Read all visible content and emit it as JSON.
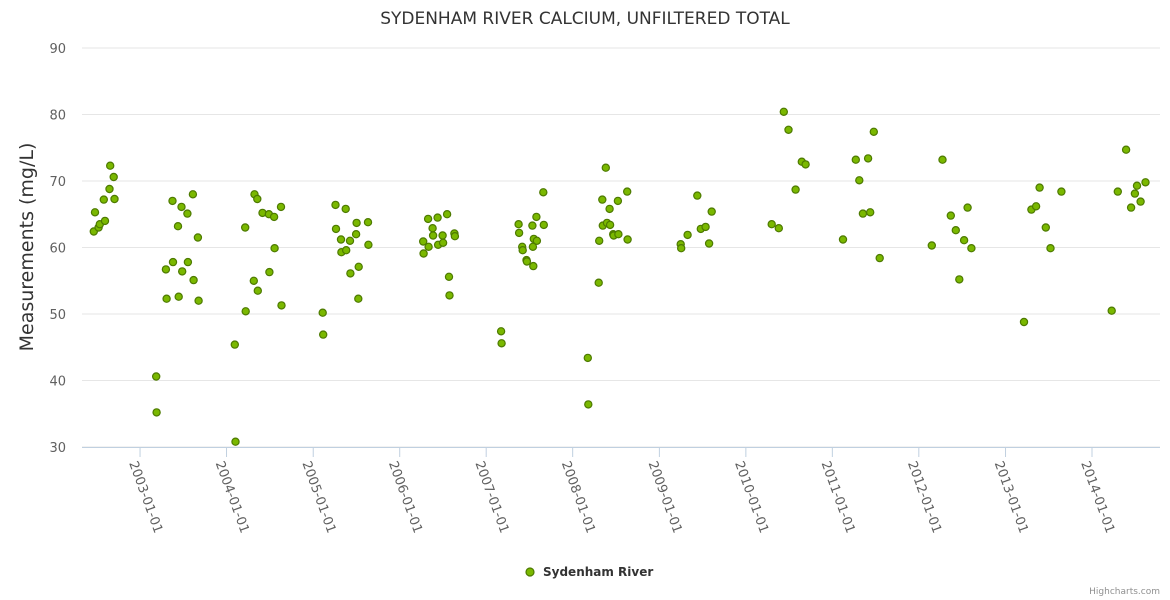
{
  "chart_data": {
    "type": "scatter",
    "title": "SYDENHAM RIVER CALCIUM, UNFILTERED TOTAL",
    "xlabel": "",
    "ylabel": "Measurements (mg/L)",
    "ylim": [
      30,
      90
    ],
    "yticks": [
      "30",
      "40",
      "50",
      "60",
      "70",
      "80",
      "90"
    ],
    "xlim": [
      "2002-05-01",
      "2014-10-15"
    ],
    "xticks": [
      "2003-01-01",
      "2004-01-01",
      "2005-01-01",
      "2006-01-01",
      "2007-01-01",
      "2008-01-01",
      "2009-01-01",
      "2010-01-01",
      "2011-01-01",
      "2012-01-01",
      "2013-01-01",
      "2014-01-01"
    ],
    "grid": true,
    "legend_position": "bottom-center",
    "color": "#7ab800",
    "credits": "Highcharts.com",
    "series": [
      {
        "name": "Sydenham River",
        "points": [
          [
            "2002-06-20",
            62.4
          ],
          [
            "2002-06-25",
            65.3
          ],
          [
            "2002-07-10",
            63.0
          ],
          [
            "2002-07-15",
            63.5
          ],
          [
            "2002-08-01",
            67.2
          ],
          [
            "2002-08-06",
            64.0
          ],
          [
            "2002-08-25",
            68.8
          ],
          [
            "2002-08-28",
            72.3
          ],
          [
            "2002-09-12",
            70.6
          ],
          [
            "2002-09-15",
            67.3
          ],
          [
            "2003-03-10",
            40.6
          ],
          [
            "2003-03-12",
            35.2
          ],
          [
            "2003-04-20",
            56.7
          ],
          [
            "2003-04-23",
            52.3
          ],
          [
            "2003-05-18",
            67.0
          ],
          [
            "2003-05-20",
            57.8
          ],
          [
            "2003-06-10",
            63.2
          ],
          [
            "2003-06-13",
            52.6
          ],
          [
            "2003-06-25",
            66.1
          ],
          [
            "2003-06-28",
            56.4
          ],
          [
            "2003-07-20",
            65.1
          ],
          [
            "2003-07-22",
            57.8
          ],
          [
            "2003-08-12",
            68.0
          ],
          [
            "2003-08-15",
            55.1
          ],
          [
            "2003-09-02",
            61.5
          ],
          [
            "2003-09-05",
            52.0
          ],
          [
            "2004-02-05",
            45.4
          ],
          [
            "2004-02-08",
            30.8
          ],
          [
            "2004-03-20",
            63.0
          ],
          [
            "2004-03-22",
            50.4
          ],
          [
            "2004-04-25",
            55.0
          ],
          [
            "2004-04-28",
            68.0
          ],
          [
            "2004-05-10",
            67.3
          ],
          [
            "2004-05-12",
            53.5
          ],
          [
            "2004-06-01",
            65.2
          ],
          [
            "2004-06-28",
            65.0
          ],
          [
            "2004-06-30",
            56.3
          ],
          [
            "2004-07-20",
            64.6
          ],
          [
            "2004-07-22",
            59.9
          ],
          [
            "2004-08-18",
            66.1
          ],
          [
            "2004-08-20",
            51.3
          ],
          [
            "2005-02-10",
            50.2
          ],
          [
            "2005-02-12",
            46.9
          ],
          [
            "2005-04-05",
            66.4
          ],
          [
            "2005-04-07",
            62.8
          ],
          [
            "2005-04-28",
            61.2
          ],
          [
            "2005-04-30",
            59.3
          ],
          [
            "2005-05-18",
            65.8
          ],
          [
            "2005-05-20",
            59.6
          ],
          [
            "2005-06-05",
            61.0
          ],
          [
            "2005-06-07",
            56.1
          ],
          [
            "2005-07-01",
            62.0
          ],
          [
            "2005-07-03",
            63.7
          ],
          [
            "2005-07-10",
            52.3
          ],
          [
            "2005-07-12",
            57.1
          ],
          [
            "2005-08-20",
            63.8
          ],
          [
            "2005-08-22",
            60.4
          ],
          [
            "2006-04-10",
            60.9
          ],
          [
            "2006-04-12",
            59.1
          ],
          [
            "2006-05-01",
            64.3
          ],
          [
            "2006-05-03",
            60.1
          ],
          [
            "2006-05-20",
            62.9
          ],
          [
            "2006-05-22",
            61.8
          ],
          [
            "2006-06-10",
            64.5
          ],
          [
            "2006-06-12",
            60.4
          ],
          [
            "2006-07-01",
            61.8
          ],
          [
            "2006-07-03",
            60.7
          ],
          [
            "2006-07-20",
            65.0
          ],
          [
            "2006-07-28",
            55.6
          ],
          [
            "2006-07-30",
            52.8
          ],
          [
            "2006-08-20",
            62.1
          ],
          [
            "2006-08-22",
            61.7
          ],
          [
            "2007-03-05",
            47.4
          ],
          [
            "2007-03-07",
            45.6
          ],
          [
            "2007-05-18",
            63.5
          ],
          [
            "2007-05-20",
            62.2
          ],
          [
            "2007-06-02",
            60.1
          ],
          [
            "2007-06-04",
            59.6
          ],
          [
            "2007-06-20",
            58.1
          ],
          [
            "2007-06-22",
            57.9
          ],
          [
            "2007-07-15",
            63.3
          ],
          [
            "2007-07-17",
            60.1
          ],
          [
            "2007-07-19",
            57.2
          ],
          [
            "2007-07-21",
            61.3
          ],
          [
            "2007-08-01",
            64.6
          ],
          [
            "2007-08-03",
            61.0
          ],
          [
            "2007-08-30",
            68.3
          ],
          [
            "2007-09-01",
            63.4
          ],
          [
            "2008-03-05",
            43.4
          ],
          [
            "2008-03-07",
            36.4
          ],
          [
            "2008-04-20",
            54.7
          ],
          [
            "2008-04-22",
            61.0
          ],
          [
            "2008-05-05",
            67.2
          ],
          [
            "2008-05-07",
            63.3
          ],
          [
            "2008-05-20",
            72.0
          ],
          [
            "2008-05-25",
            63.7
          ],
          [
            "2008-06-05",
            65.8
          ],
          [
            "2008-06-07",
            63.4
          ],
          [
            "2008-06-20",
            62.0
          ],
          [
            "2008-06-22",
            61.8
          ],
          [
            "2008-07-10",
            67.0
          ],
          [
            "2008-07-12",
            62.0
          ],
          [
            "2008-08-18",
            68.4
          ],
          [
            "2008-08-20",
            61.2
          ],
          [
            "2009-04-01",
            60.5
          ],
          [
            "2009-04-03",
            59.9
          ],
          [
            "2009-04-30",
            61.9
          ],
          [
            "2009-06-10",
            67.8
          ],
          [
            "2009-06-25",
            62.8
          ],
          [
            "2009-07-15",
            63.1
          ],
          [
            "2009-07-30",
            60.6
          ],
          [
            "2009-08-10",
            65.4
          ],
          [
            "2010-04-20",
            63.5
          ],
          [
            "2010-05-20",
            62.9
          ],
          [
            "2010-06-10",
            80.4
          ],
          [
            "2010-06-30",
            77.7
          ],
          [
            "2010-07-30",
            68.7
          ],
          [
            "2010-08-25",
            72.9
          ],
          [
            "2010-09-10",
            72.5
          ],
          [
            "2011-02-15",
            61.2
          ],
          [
            "2011-04-10",
            73.2
          ],
          [
            "2011-04-25",
            70.1
          ],
          [
            "2011-05-10",
            65.1
          ],
          [
            "2011-06-01",
            73.4
          ],
          [
            "2011-06-10",
            65.3
          ],
          [
            "2011-06-25",
            77.4
          ],
          [
            "2011-07-20",
            58.4
          ],
          [
            "2012-02-25",
            60.3
          ],
          [
            "2012-04-10",
            73.2
          ],
          [
            "2012-05-15",
            64.8
          ],
          [
            "2012-06-05",
            62.6
          ],
          [
            "2012-06-20",
            55.2
          ],
          [
            "2012-07-10",
            61.1
          ],
          [
            "2012-07-25",
            66.0
          ],
          [
            "2012-08-10",
            59.9
          ],
          [
            "2013-03-20",
            48.8
          ],
          [
            "2013-04-20",
            65.7
          ],
          [
            "2013-05-10",
            66.2
          ],
          [
            "2013-05-25",
            69.0
          ],
          [
            "2013-06-20",
            63.0
          ],
          [
            "2013-07-10",
            59.9
          ],
          [
            "2013-08-25",
            68.4
          ],
          [
            "2014-03-25",
            50.5
          ],
          [
            "2014-04-20",
            68.4
          ],
          [
            "2014-05-25",
            74.7
          ],
          [
            "2014-06-15",
            66.0
          ],
          [
            "2014-07-01",
            68.1
          ],
          [
            "2014-07-10",
            69.3
          ],
          [
            "2014-07-25",
            66.9
          ],
          [
            "2014-08-15",
            69.8
          ]
        ]
      }
    ]
  }
}
